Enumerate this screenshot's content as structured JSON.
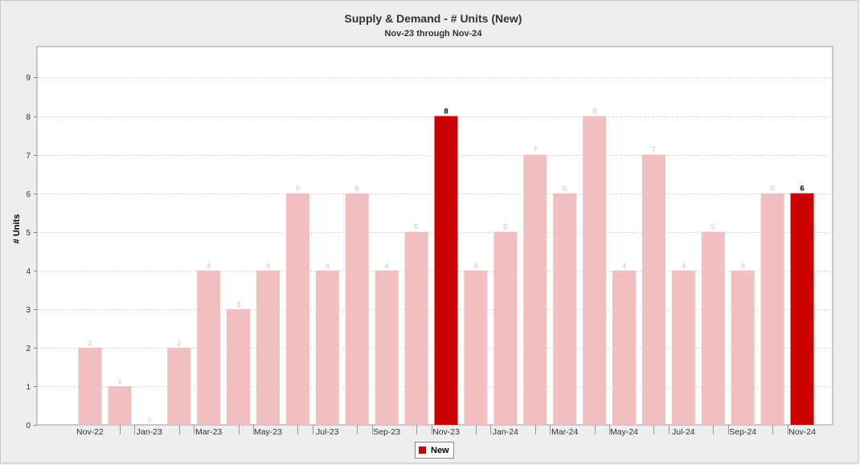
{
  "chart_data": {
    "type": "bar",
    "title": "Supply & Demand - # Units (New)",
    "subtitle": "Nov-23 through Nov-24",
    "ylabel": "# Units",
    "xlabel": "",
    "ylim": [
      0,
      9.8
    ],
    "yticks": [
      0,
      1,
      2,
      3,
      4,
      5,
      6,
      7,
      8,
      9
    ],
    "grid": true,
    "categories": [
      "Nov-22",
      "Dec-22",
      "Jan-23",
      "Feb-23",
      "Mar-23",
      "Apr-23",
      "May-23",
      "Jun-23",
      "Jul-23",
      "Aug-23",
      "Sep-23",
      "Oct-23",
      "Nov-23",
      "Dec-23",
      "Jan-24",
      "Feb-24",
      "Mar-24",
      "Apr-24",
      "May-24",
      "Jun-24",
      "Jul-24",
      "Aug-24",
      "Sep-24",
      "Oct-24",
      "Nov-24"
    ],
    "x_tick_labels": [
      "Nov-22",
      "",
      "Jan-23",
      "",
      "Mar-23",
      "",
      "May-23",
      "",
      "Jul-23",
      "",
      "Sep-23",
      "",
      "Nov-23",
      "",
      "Jan-24",
      "",
      "Mar-24",
      "",
      "May-24",
      "",
      "Jul-24",
      "",
      "Sep-24",
      "",
      "Nov-24"
    ],
    "values": [
      2,
      1,
      0,
      2,
      4,
      3,
      4,
      6,
      4,
      6,
      4,
      5,
      8,
      4,
      5,
      7,
      6,
      8,
      4,
      7,
      4,
      5,
      4,
      6,
      6
    ],
    "highlighted": [
      "Nov-23",
      "Nov-24"
    ],
    "series": [
      {
        "name": "New",
        "values": [
          2,
          1,
          0,
          2,
          4,
          3,
          4,
          6,
          4,
          6,
          4,
          5,
          8,
          4,
          5,
          7,
          6,
          8,
          4,
          7,
          4,
          5,
          4,
          6,
          6
        ]
      }
    ],
    "colors": {
      "highlight": "#cc0000",
      "normal": "#f1bfbf",
      "highlight_label": "#000000",
      "normal_label": "#c8c8c8"
    },
    "legend": {
      "position": "bottom-center",
      "entries": [
        "New"
      ]
    }
  }
}
